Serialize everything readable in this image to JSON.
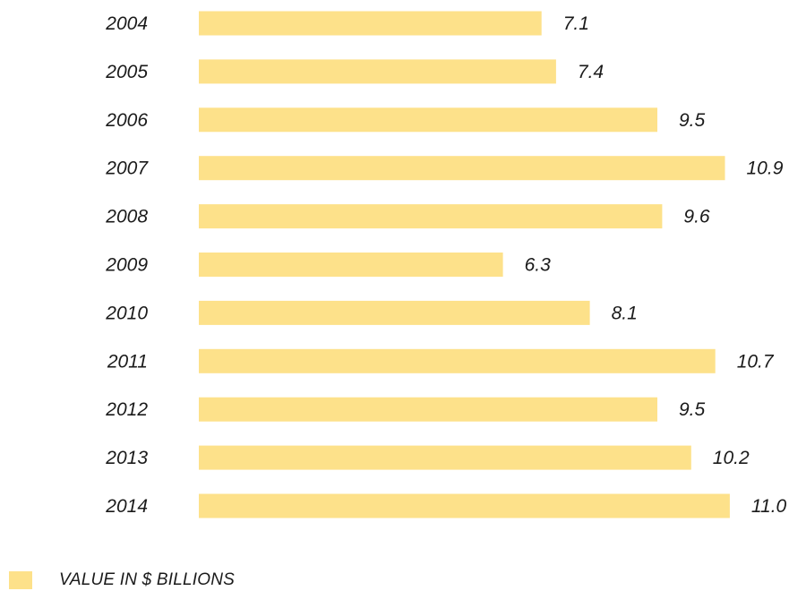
{
  "chart_data": {
    "type": "bar",
    "orientation": "horizontal",
    "categories": [
      "2004",
      "2005",
      "2006",
      "2007",
      "2008",
      "2009",
      "2010",
      "2011",
      "2012",
      "2013",
      "2014"
    ],
    "values": [
      7.1,
      7.4,
      9.5,
      10.9,
      9.6,
      6.3,
      8.1,
      10.7,
      9.5,
      10.2,
      11.0
    ],
    "value_labels": [
      "7.1",
      "7.4",
      "9.5",
      "10.9",
      "9.6",
      "6.3",
      "8.1",
      "10.7",
      "9.5",
      "10.2",
      "11.0"
    ],
    "series": [
      {
        "name": "VALUE IN $ BILLIONS",
        "color": "#fde18a"
      }
    ],
    "xlim": [
      0,
      11.0
    ],
    "grid": false,
    "legend_position": "bottom-left"
  }
}
